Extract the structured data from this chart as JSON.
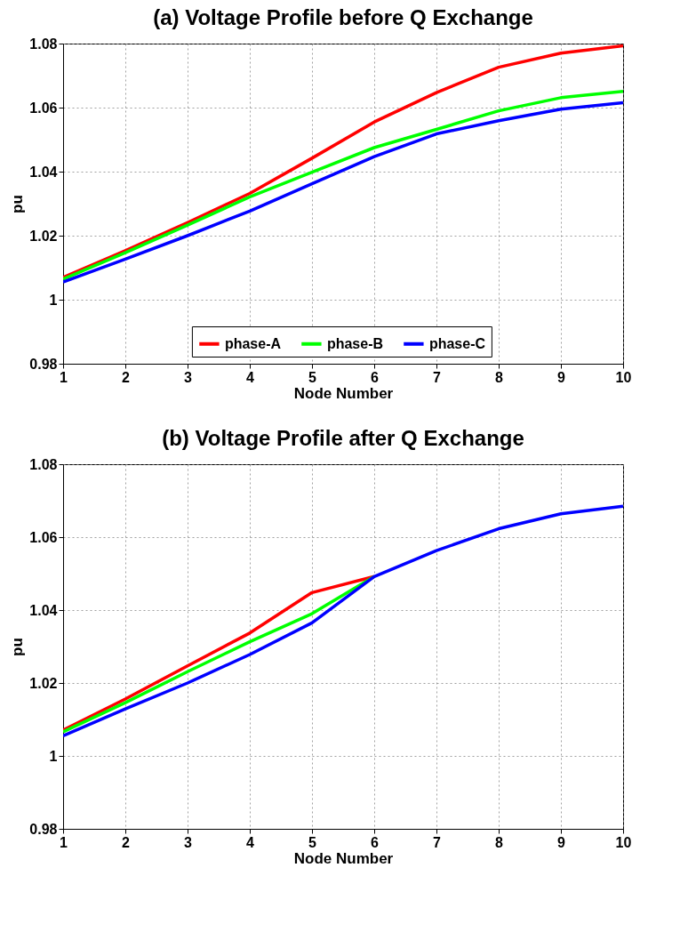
{
  "chart_data": [
    {
      "type": "line",
      "title": "(a) Voltage Profile before Q Exchange",
      "xlabel": "Node Number",
      "ylabel": "pu",
      "x": [
        1,
        2,
        3,
        4,
        5,
        6,
        7,
        8,
        9,
        10
      ],
      "xlim": [
        1,
        10
      ],
      "xticks": [
        1,
        2,
        3,
        4,
        5,
        6,
        7,
        8,
        9,
        10
      ],
      "ylim": [
        0.98,
        1.08
      ],
      "yticks": [
        0.98,
        1,
        1.02,
        1.04,
        1.06,
        1.08
      ],
      "grid": true,
      "legend": "bottom",
      "line_style": "solid",
      "series": [
        {
          "name": "phase-A",
          "color": "#ff0000",
          "values": [
            1.007,
            1.0153,
            1.0241,
            1.0332,
            1.0442,
            1.0555,
            1.0647,
            1.0726,
            1.077,
            1.0793
          ]
        },
        {
          "name": "phase-B",
          "color": "#00ff00",
          "values": [
            1.0064,
            1.0147,
            1.0233,
            1.0321,
            1.0398,
            1.0475,
            1.0532,
            1.059,
            1.0631,
            1.0651
          ]
        },
        {
          "name": "phase-C",
          "color": "#0000ff",
          "values": [
            1.0055,
            1.0127,
            1.02,
            1.0277,
            1.0362,
            1.0447,
            1.0518,
            1.0559,
            1.0595,
            1.0615
          ]
        }
      ]
    },
    {
      "type": "line",
      "title": "(b) Voltage Profile after Q Exchange",
      "xlabel": "Node Number",
      "ylabel": "pu",
      "x": [
        1,
        2,
        3,
        4,
        5,
        6,
        7,
        8,
        9,
        10
      ],
      "xlim": [
        1,
        10
      ],
      "xticks": [
        1,
        2,
        3,
        4,
        5,
        6,
        7,
        8,
        9,
        10
      ],
      "ylim": [
        0.98,
        1.08
      ],
      "yticks": [
        0.98,
        1,
        1.02,
        1.04,
        1.06,
        1.08
      ],
      "grid": true,
      "line_style": "solid",
      "series": [
        {
          "color": "#ff0000",
          "values": [
            1.0071,
            1.0156,
            1.0247,
            1.0337,
            1.0448,
            1.0492,
            null,
            null,
            null,
            null
          ]
        },
        {
          "color": "#00ff00",
          "values": [
            1.0066,
            1.0146,
            1.0231,
            1.0313,
            1.039,
            1.0492,
            null,
            null,
            null,
            null
          ]
        },
        {
          "color": "#0000ff",
          "values": [
            1.0055,
            1.0129,
            1.02,
            1.0278,
            1.0365,
            1.0492,
            1.0563,
            1.0623,
            1.0664,
            1.0685
          ]
        }
      ]
    }
  ]
}
